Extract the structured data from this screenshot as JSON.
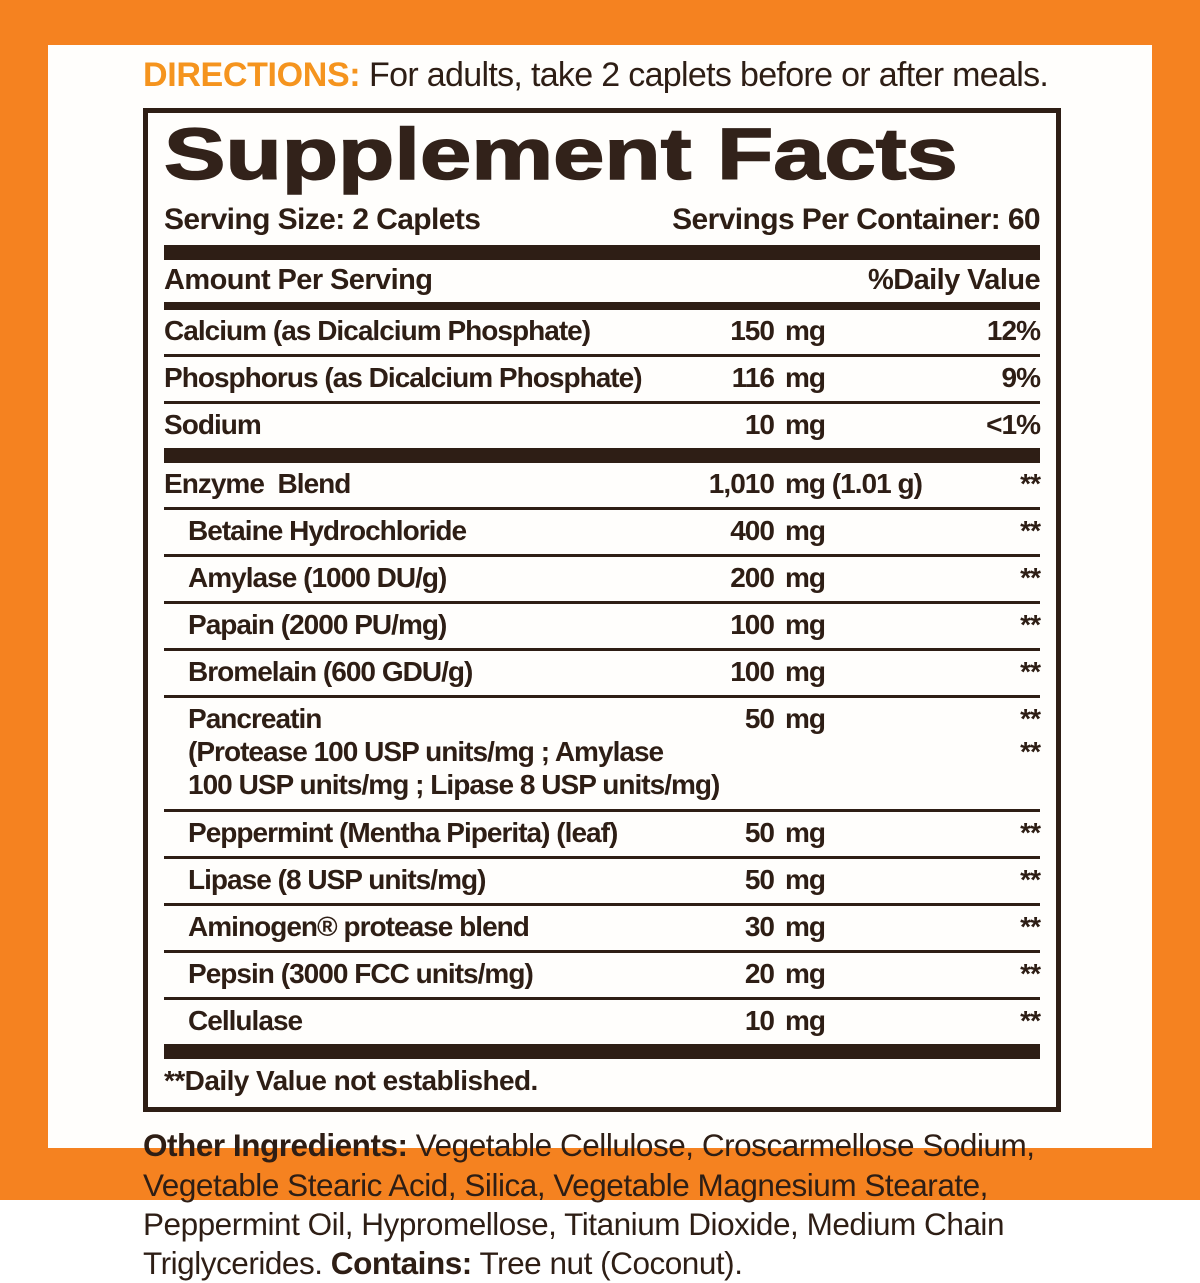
{
  "colors": {
    "frame_orange": "#F58220",
    "directions_orange": "#F5941E",
    "text_dark": "#2e1e15"
  },
  "directions": {
    "label": "DIRECTIONS:",
    "text": " For adults, take 2 caplets before or after meals."
  },
  "panel": {
    "title": "Supplement Facts",
    "serving_size": "Serving Size: 2 Caplets",
    "servings_per_container": "Servings Per Container: 60",
    "header": {
      "amount_label": "Amount Per Serving",
      "dv_label": "%Daily Value"
    },
    "main_rows": [
      {
        "name": "Calcium (as Dicalcium Phosphate)",
        "amount": "150",
        "unit": "mg",
        "dv": "12%"
      },
      {
        "name": "Phosphorus (as Dicalcium Phosphate)",
        "amount": "116",
        "unit": "mg",
        "dv": "9%"
      },
      {
        "name": "Sodium",
        "amount": "10",
        "unit": "mg",
        "dv": "<1%"
      }
    ],
    "blend_rows": [
      {
        "name": "Enzyme  Blend",
        "amount": "1,010",
        "unit": "mg (1.01 g)",
        "dv": "**"
      },
      {
        "name": "Betaine Hydrochloride",
        "amount": "400",
        "unit": "mg",
        "dv": "**"
      },
      {
        "name": "Amylase (1000 DU/g)",
        "amount": "200",
        "unit": "mg",
        "dv": "**"
      },
      {
        "name": "Papain (2000 PU/mg)",
        "amount": "100",
        "unit": "mg",
        "dv": "**"
      },
      {
        "name": "Bromelain (600 GDU/g)",
        "amount": "100",
        "unit": "mg",
        "dv": "**"
      },
      {
        "name": "Pancreatin",
        "amount": "50",
        "unit": "mg",
        "dv": "**",
        "sub_line_1": "(Protease 100 USP units/mg ; Amylase",
        "sub_line_1_dv": "**",
        "sub_line_2": "100 USP units/mg ; Lipase 8 USP units/mg)"
      },
      {
        "name": "Peppermint (Mentha Piperita) (leaf)",
        "amount": "50",
        "unit": "mg",
        "dv": "**"
      },
      {
        "name": "Lipase (8 USP units/mg)",
        "amount": "50",
        "unit": "mg",
        "dv": "**"
      },
      {
        "name": "Aminogen® protease blend",
        "amount": "30",
        "unit": "mg",
        "dv": "**"
      },
      {
        "name": "Pepsin (3000 FCC units/mg)",
        "amount": "20",
        "unit": "mg",
        "dv": "**"
      },
      {
        "name": "Cellulase",
        "amount": "10",
        "unit": "mg",
        "dv": "**"
      }
    ],
    "footnote": "**Daily Value not established."
  },
  "other_ingredients": {
    "label": "Other Ingredients:",
    "text": " Vegetable Cellulose, Croscarmellose Sodium, Vegetable Stearic Acid, Silica, Vegetable Magnesium Stearate, Peppermint Oil, Hypromellose, Titanium Dioxide, Medium Chain Triglycerides. ",
    "contains_label": "Contains:",
    "contains_text": " Tree nut (Coconut)."
  }
}
